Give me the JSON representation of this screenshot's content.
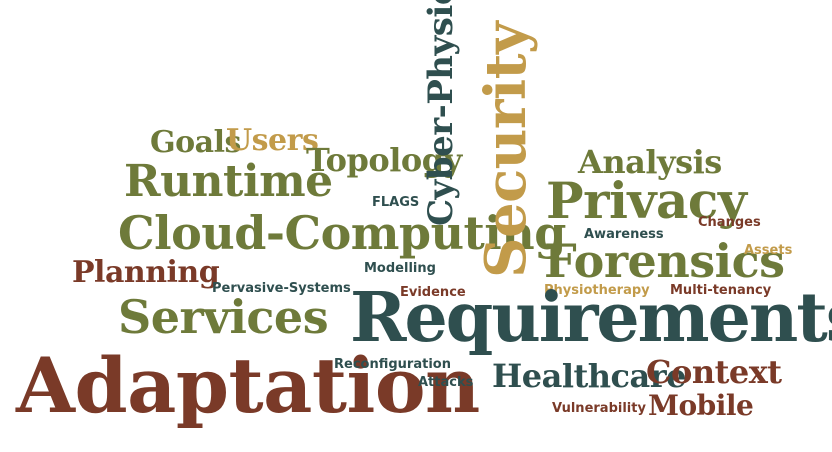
{
  "colors": {
    "brown": "#7a3a28",
    "olive": "#6e7a3a",
    "teal": "#2f4f4f",
    "gold": "#c29b4a"
  },
  "words": {
    "goals": "Goals",
    "users": "Users",
    "topology": "Topology",
    "runtime": "Runtime",
    "cloud_computing": "Cloud-Computing",
    "planning": "Planning",
    "services": "Services",
    "adaptation": "Adaptation",
    "pervasive_systems": "Pervasive-Systems",
    "modelling": "Modelling",
    "flags": "FLAGS",
    "cyber_physical": "Cyber-Physical",
    "security": "Security",
    "analysis": "Analysis",
    "privacy": "Privacy",
    "changes": "Changes",
    "awareness": "Awareness",
    "forensics": "Forensics",
    "assets": "Assets",
    "evidence": "Evidence",
    "physiotherapy": "Physiotherapy",
    "multi_tenancy": "Multi-tenancy",
    "requirements": "Requirements",
    "reconfiguration": "Reconfiguration",
    "attacks": "Attacks",
    "healthcare": "Healthcare",
    "context": "Context",
    "vulnerability": "Vulnerability",
    "mobile": "Mobile"
  }
}
